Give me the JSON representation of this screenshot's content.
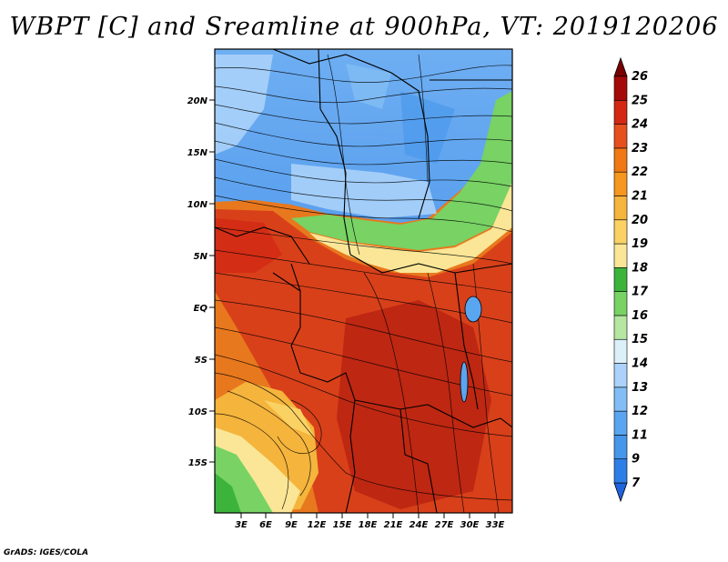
{
  "title": "WBPT [C] and Sreamline at 900hPa, VT: 2019120206",
  "footer": "GrADS: IGES/COLA",
  "lat_labels": [
    "20N",
    "15N",
    "10N",
    "5N",
    "EQ",
    "5S",
    "10S",
    "15S"
  ],
  "lon_labels": [
    "3E",
    "6E",
    "9E",
    "12E",
    "15E",
    "18E",
    "21E",
    "24E",
    "27E",
    "30E",
    "33E"
  ],
  "colorbar": {
    "levels": [
      "7",
      "9",
      "11",
      "12",
      "13",
      "14",
      "15",
      "16",
      "17",
      "18",
      "19",
      "20",
      "21",
      "22",
      "23",
      "24",
      "25",
      "26"
    ],
    "colors": [
      "#1e64dc",
      "#2d7ee6",
      "#4696eb",
      "#5aa5f0",
      "#82bef5",
      "#aad2fa",
      "#dcf0fa",
      "#b4e6a0",
      "#78d264",
      "#3cb43c",
      "#fae696",
      "#fad264",
      "#f5b43c",
      "#f5961e",
      "#f07814",
      "#e6501e",
      "#d22814",
      "#a50a0a",
      "#780000"
    ]
  },
  "colors": {
    "cold": "#5aa5f0",
    "mid": "#aad2fa",
    "green": "#78d264",
    "warm": "#f07814",
    "hot": "#d22814"
  }
}
